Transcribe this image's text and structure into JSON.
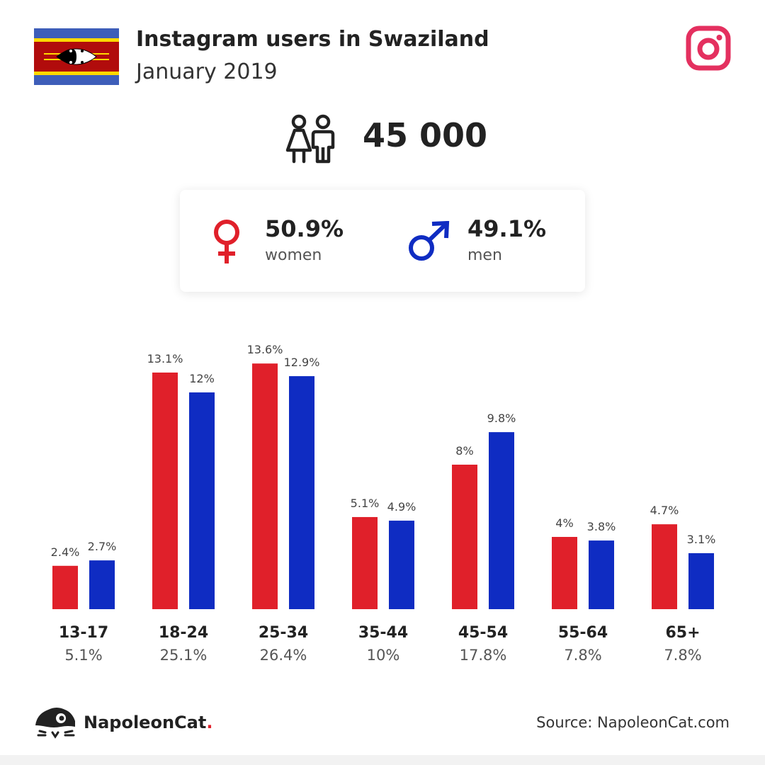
{
  "header": {
    "title": "Instagram users in Swaziland",
    "subtitle": "January 2019"
  },
  "summary": {
    "total": "45 000",
    "women_pct": "50.9%",
    "women_label": "women",
    "men_pct": "49.1%",
    "men_label": "men"
  },
  "colors": {
    "women": "#e0202a",
    "men": "#0f2cc2",
    "instagram": "#e4305f"
  },
  "chart_data": {
    "type": "bar",
    "categories": [
      "13-17",
      "18-24",
      "25-34",
      "35-44",
      "45-54",
      "55-64",
      "65+"
    ],
    "category_totals": [
      "5.1%",
      "25.1%",
      "26.4%",
      "10%",
      "17.8%",
      "7.8%",
      "7.8%"
    ],
    "series": [
      {
        "values": [
          2.4,
          13.1,
          13.6,
          5.1,
          8,
          4,
          4.7
        ],
        "labels": [
          "2.4%",
          "13.1%",
          "13.6%",
          "5.1%",
          "8%",
          "4%",
          "4.7%"
        ]
      },
      {
        "values": [
          2.7,
          12,
          12.9,
          4.9,
          9.8,
          3.8,
          3.1
        ],
        "labels": [
          "2.7%",
          "12%",
          "12.9%",
          "4.9%",
          "9.8%",
          "3.8%",
          "3.1%"
        ]
      }
    ],
    "ylim": [
      0,
      14
    ],
    "grid": false
  },
  "footer": {
    "brand": "NapoleonCat",
    "brand_dot": ".",
    "source": "Source: NapoleonCat.com"
  }
}
